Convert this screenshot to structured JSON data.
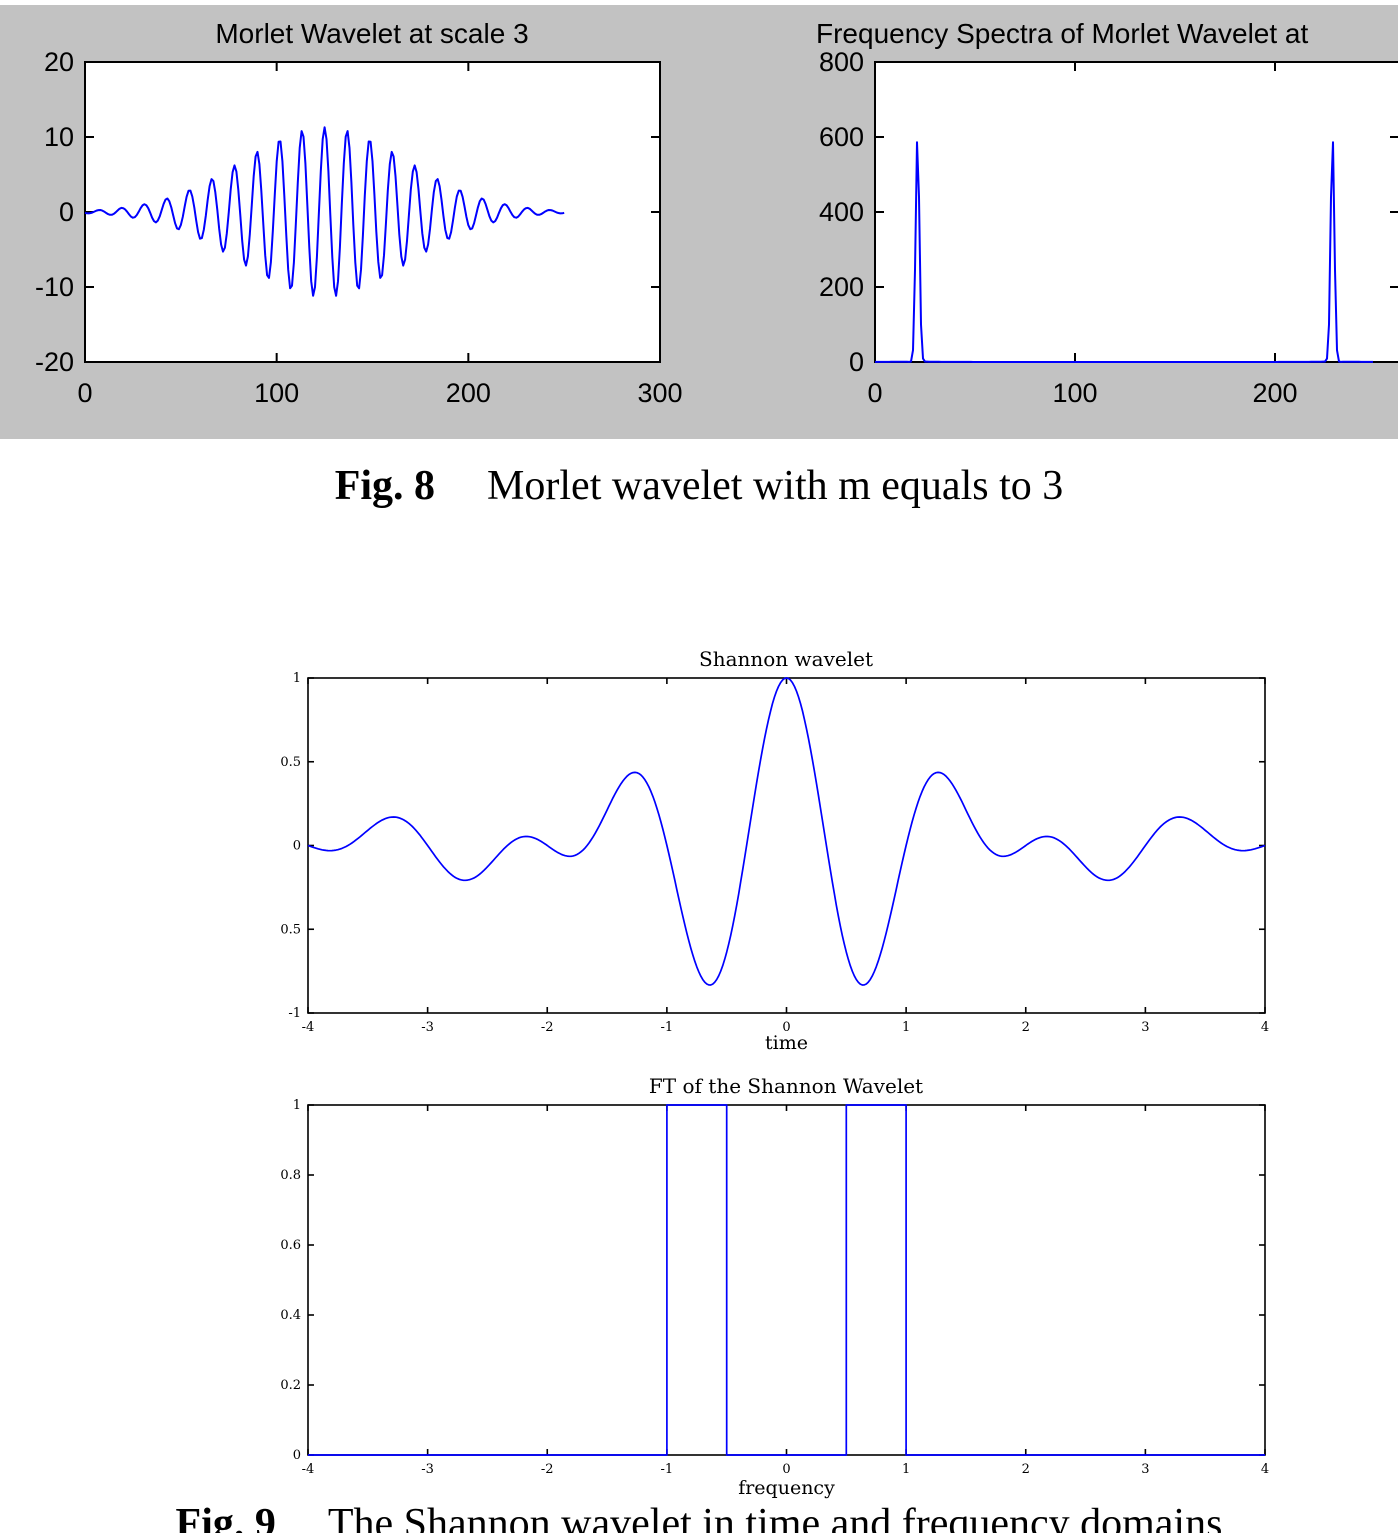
{
  "colors": {
    "line": "#0000ff",
    "panel_bg": "#c2c2c2",
    "axis": "#000000",
    "page_bg": "#ffffff"
  },
  "captions": {
    "fig8": {
      "label": "Fig. 8",
      "text": "Morlet wavelet with m equals to 3"
    },
    "fig9": {
      "label": "Fig. 9",
      "text": "The Shannon wavelet in time and frequency domains"
    }
  },
  "chart_data": [
    {
      "id": "morlet-time",
      "type": "line",
      "title": "Morlet Wavelet at scale 3",
      "xlabel": "",
      "ylabel": "",
      "xlim": [
        0,
        300
      ],
      "ylim": [
        -20,
        20
      ],
      "xticks": [
        0,
        100,
        200,
        300
      ],
      "yticks": [
        -20,
        -10,
        0,
        10,
        20
      ],
      "grid": false,
      "legend": null,
      "signal": {
        "kind": "morlet",
        "n_samples": 250,
        "center": 125,
        "sigma": 43,
        "amplitude": 11.3,
        "cycles": 21.25
      }
    },
    {
      "id": "morlet-spectrum",
      "type": "line",
      "title": "Frequency Spectra of Morlet Wavelet at",
      "xlabel": "",
      "ylabel": "",
      "xlim": [
        0,
        262
      ],
      "ylim": [
        0,
        800
      ],
      "xticks": [
        0,
        100,
        200
      ],
      "yticks": [
        0,
        200,
        400,
        600,
        800
      ],
      "grid": false,
      "legend": null,
      "signal": {
        "kind": "dft-magnitude",
        "source": "morlet-time",
        "peak_bins": [
          21,
          229
        ],
        "peak_value": 610
      }
    },
    {
      "id": "shannon-time",
      "type": "line",
      "title": "Shannon wavelet",
      "xlabel": "time",
      "ylabel": "",
      "xlim": [
        -4,
        4
      ],
      "ylim": [
        -1,
        1
      ],
      "xticks": [
        -4,
        -3,
        -2,
        -1,
        0,
        1,
        2,
        3,
        4
      ],
      "yticks": [
        -1,
        -0.5,
        0,
        0.5,
        1
      ],
      "grid": false,
      "legend": null,
      "signal": {
        "kind": "shannon",
        "t_min": -4,
        "t_max": 4,
        "samples": 481,
        "peak": 1,
        "min_value": -0.82
      }
    },
    {
      "id": "shannon-ft",
      "type": "line",
      "title": "FT of the Shannon Wavelet",
      "xlabel": "frequency",
      "ylabel": "",
      "xlim": [
        -4,
        4
      ],
      "ylim": [
        0,
        1
      ],
      "xticks": [
        -4,
        -3,
        -2,
        -1,
        0,
        1,
        2,
        3,
        4
      ],
      "yticks": [
        0,
        0.2,
        0.4,
        0.6,
        0.8,
        1
      ],
      "grid": false,
      "legend": null,
      "signal": {
        "kind": "piecewise",
        "points": [
          [
            -4,
            0
          ],
          [
            -1,
            0
          ],
          [
            -1,
            1
          ],
          [
            -0.5,
            1
          ],
          [
            -0.5,
            0
          ],
          [
            0.5,
            0
          ],
          [
            0.5,
            1
          ],
          [
            1,
            1
          ],
          [
            1,
            0
          ],
          [
            4,
            0
          ]
        ]
      }
    }
  ]
}
